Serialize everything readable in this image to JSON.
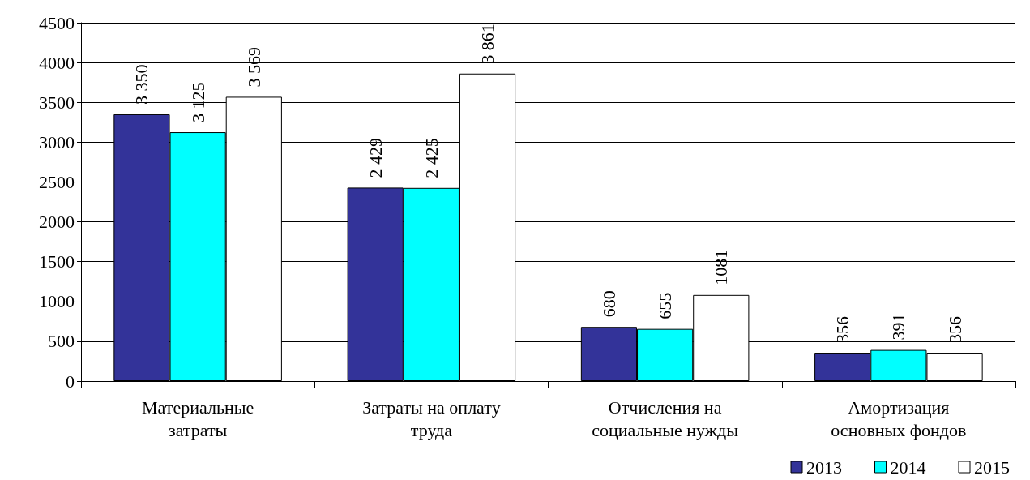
{
  "chart_data": {
    "type": "bar",
    "categories": [
      "Материальные затраты",
      "Затраты на оплату труда",
      "Отчисления на социальные нужды",
      "Амортизация основных фондов"
    ],
    "series": [
      {
        "name": "2013",
        "color": "#333399",
        "values": [
          3350,
          2429,
          680,
          356
        ],
        "value_labels": [
          "3 350",
          "2 429",
          "680",
          "356"
        ]
      },
      {
        "name": "2014",
        "color": "#00ffff",
        "values": [
          3125,
          2425,
          655,
          391
        ],
        "value_labels": [
          "3 125",
          "2 425",
          "655",
          "391"
        ]
      },
      {
        "name": "2015",
        "color": "#ffffff",
        "values": [
          3569,
          3861,
          1081,
          356
        ],
        "value_labels": [
          "3 569",
          "3 861",
          "1081",
          "356"
        ]
      }
    ],
    "ylim": [
      0,
      4500
    ],
    "yticks": [
      0,
      500,
      1000,
      1500,
      2000,
      2500,
      3000,
      3500,
      4000,
      4500
    ],
    "grid": "y",
    "legend": "bottom right"
  }
}
